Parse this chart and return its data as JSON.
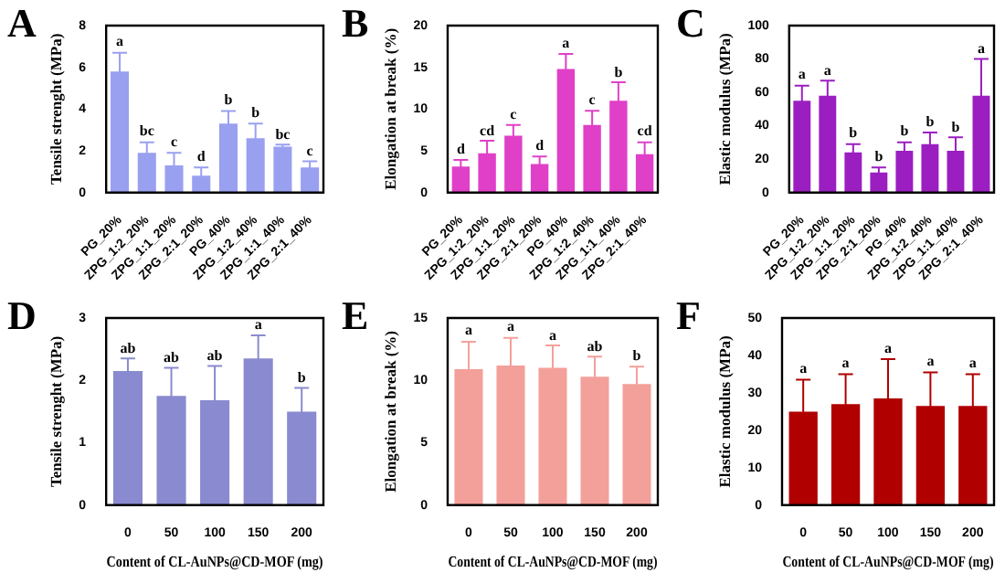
{
  "chart_data": [
    {
      "type": "bar",
      "title": "A",
      "ylabel": "Tensile strenght (MPa)",
      "categories": [
        "PG_20%",
        "ZPG_1:2_20%",
        "ZPG_1:1_20%",
        "ZPG_2:1_20%",
        "PG_40%",
        "ZPG_1:2_40%",
        "ZPG_1:1_40%",
        "ZPG_2:1_40%"
      ],
      "values": [
        5.8,
        1.9,
        1.3,
        0.8,
        3.3,
        2.6,
        2.2,
        1.2
      ],
      "errors": [
        0.9,
        0.5,
        0.6,
        0.4,
        0.6,
        0.7,
        0.1,
        0.3
      ],
      "color": "#99a0f0",
      "ylim": [
        0,
        8
      ],
      "yticks": [
        0,
        2,
        4,
        6,
        8
      ],
      "grid": false,
      "legend": false,
      "value_labels": [
        "a",
        "bc",
        "c",
        "d",
        "b",
        "b",
        "bc",
        "c"
      ]
    },
    {
      "type": "bar",
      "title": "B",
      "ylabel": "Elongation at break (%)",
      "categories": [
        "PG_20%",
        "ZPG_1:2_20%",
        "ZPG_1:1_20%",
        "ZPG_2:1_20%",
        "PG_40%",
        "ZPG_1:2_40%",
        "ZPG_1:1_40%",
        "ZPG_2:1_40%"
      ],
      "values": [
        3.1,
        4.7,
        6.8,
        3.4,
        14.8,
        8.1,
        11,
        4.6
      ],
      "errors": [
        0.8,
        1.5,
        1.3,
        0.9,
        1.8,
        1.7,
        2.2,
        1.4
      ],
      "color": "#e040c8",
      "ylim": [
        0,
        20
      ],
      "yticks": [
        0,
        5,
        10,
        15,
        20
      ],
      "grid": false,
      "legend": false,
      "value_labels": [
        "d",
        "cd",
        "c",
        "d",
        "a",
        "c",
        "b",
        "cd"
      ]
    },
    {
      "type": "bar",
      "title": "C",
      "ylabel": "Elastic modulus (MPa)",
      "categories": [
        "PG_20%",
        "ZPG_1:2_20%",
        "ZPG_1:1_20%",
        "ZPG_2:1_20%",
        "PG_40%",
        "ZPG_1:2_40%",
        "ZPG_1:1_40%",
        "ZPG_2:1_40%"
      ],
      "values": [
        55,
        58,
        24,
        12,
        25,
        29,
        25,
        58
      ],
      "errors": [
        9,
        9,
        5,
        3,
        5,
        7,
        8,
        22
      ],
      "color": "#9b1fc0",
      "ylim": [
        0,
        100
      ],
      "yticks": [
        0,
        20,
        40,
        60,
        80,
        100
      ],
      "grid": false,
      "legend": false,
      "value_labels": [
        "a",
        "a",
        "b",
        "b",
        "b",
        "b",
        "b",
        "a"
      ]
    },
    {
      "type": "bar",
      "title": "D",
      "ylabel": "Tensile strenght (MPa)",
      "xlabel": "Content of CL-AuNPs@CD-MOF (mg)",
      "categories": [
        "0",
        "50",
        "100",
        "150",
        "200"
      ],
      "values": [
        2.15,
        1.75,
        1.68,
        2.35,
        1.5
      ],
      "errors": [
        0.2,
        0.45,
        0.55,
        0.37,
        0.38
      ],
      "color": "#8a8ad0",
      "ylim": [
        0,
        3
      ],
      "yticks": [
        0,
        1,
        2,
        3
      ],
      "grid": false,
      "legend": false,
      "value_labels": [
        "ab",
        "ab",
        "ab",
        "a",
        "b"
      ]
    },
    {
      "type": "bar",
      "title": "E",
      "ylabel": "Elongation at break (%)",
      "xlabel": "Content of CL-AuNPs@CD-MOF (mg)",
      "categories": [
        "0",
        "50",
        "100",
        "150",
        "200"
      ],
      "values": [
        10.9,
        11.2,
        11,
        10.3,
        9.7
      ],
      "errors": [
        2.2,
        2.2,
        1.8,
        1.6,
        1.4
      ],
      "color": "#f4a09a",
      "ylim": [
        0,
        15
      ],
      "yticks": [
        0,
        5,
        10,
        15
      ],
      "grid": false,
      "legend": false,
      "value_labels": [
        "a",
        "a",
        "a",
        "ab",
        "b"
      ]
    },
    {
      "type": "bar",
      "title": "F",
      "ylabel": "Elastic modulus (MPa)",
      "xlabel": "Content of CL-AuNPs@CD-MOF (mg)",
      "categories": [
        "0",
        "50",
        "100",
        "150",
        "200"
      ],
      "values": [
        25,
        27,
        28.5,
        26.5,
        26.5
      ],
      "errors": [
        8.5,
        8,
        10.5,
        9,
        8.5
      ],
      "color": "#b00000",
      "ylim": [
        0,
        50
      ],
      "yticks": [
        0,
        10,
        20,
        30,
        40,
        50
      ],
      "grid": false,
      "legend": false,
      "value_labels": [
        "a",
        "a",
        "a",
        "a",
        "a"
      ]
    }
  ]
}
